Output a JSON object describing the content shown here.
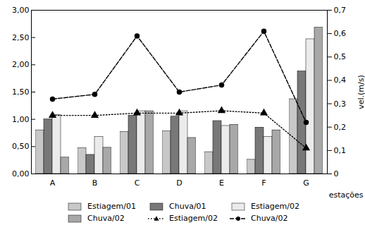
{
  "chart_data": {
    "type": "bar",
    "categories": [
      "A",
      "B",
      "C",
      "D",
      "E",
      "F",
      "G"
    ],
    "xlabel": "estações",
    "y2label": "vel.(m/s)",
    "series": [
      {
        "name": "Estiagem/01",
        "color": "#c8c8c8",
        "values": [
          0.8,
          0.47,
          0.77,
          0.78,
          0.4,
          0.26,
          1.37
        ]
      },
      {
        "name": "Chuva/01",
        "color": "#787878",
        "values": [
          1.0,
          0.35,
          1.07,
          1.05,
          0.97,
          0.85,
          1.88
        ]
      },
      {
        "name": "Estiagem/02",
        "color": "#ebebeb",
        "values": [
          1.08,
          0.68,
          1.15,
          1.15,
          0.88,
          0.68,
          2.47
        ]
      },
      {
        "name": "Chuva/02",
        "color": "#a8a8a8",
        "values": [
          0.3,
          0.48,
          1.15,
          0.66,
          0.9,
          0.8,
          2.68
        ]
      },
      {
        "name": "Estiagem/02",
        "type": "line",
        "axis": "y2",
        "color": "black",
        "marker": "triangle",
        "line_style": "dotted",
        "values": [
          0.25,
          0.25,
          0.26,
          0.26,
          0.27,
          0.26,
          0.11
        ]
      },
      {
        "name": "Chuva/02",
        "type": "line",
        "axis": "y2",
        "color": "black",
        "marker": "circle",
        "line_style": "dashed",
        "values": [
          0.32,
          0.34,
          0.59,
          0.35,
          0.38,
          0.61,
          0.22
        ]
      }
    ],
    "ylim": [
      0.0,
      3.0
    ],
    "yticks": [
      {
        "value": 0.0,
        "label": "0,00"
      },
      {
        "value": 0.5,
        "label": "0,50"
      },
      {
        "value": 1.0,
        "label": "1,00"
      },
      {
        "value": 1.5,
        "label": "1,50"
      },
      {
        "value": 2.0,
        "label": "2,00"
      },
      {
        "value": 2.5,
        "label": "2,50"
      },
      {
        "value": 3.0,
        "label": "3,00"
      }
    ],
    "y2lim": [
      0.0,
      0.7
    ],
    "y2ticks": [
      0,
      {
        "value": 0.1,
        "label": "0,1"
      },
      {
        "value": 0.2,
        "label": "0,2"
      },
      {
        "value": 0.3,
        "label": "0,3"
      },
      {
        "value": 0.4,
        "label": "0,4"
      },
      {
        "value": 0.5,
        "label": "0,5"
      },
      {
        "value": 0.6,
        "label": "0,6"
      },
      {
        "value": 0.7,
        "label": "0,7"
      }
    ],
    "grid": false,
    "legend": "bottom"
  }
}
